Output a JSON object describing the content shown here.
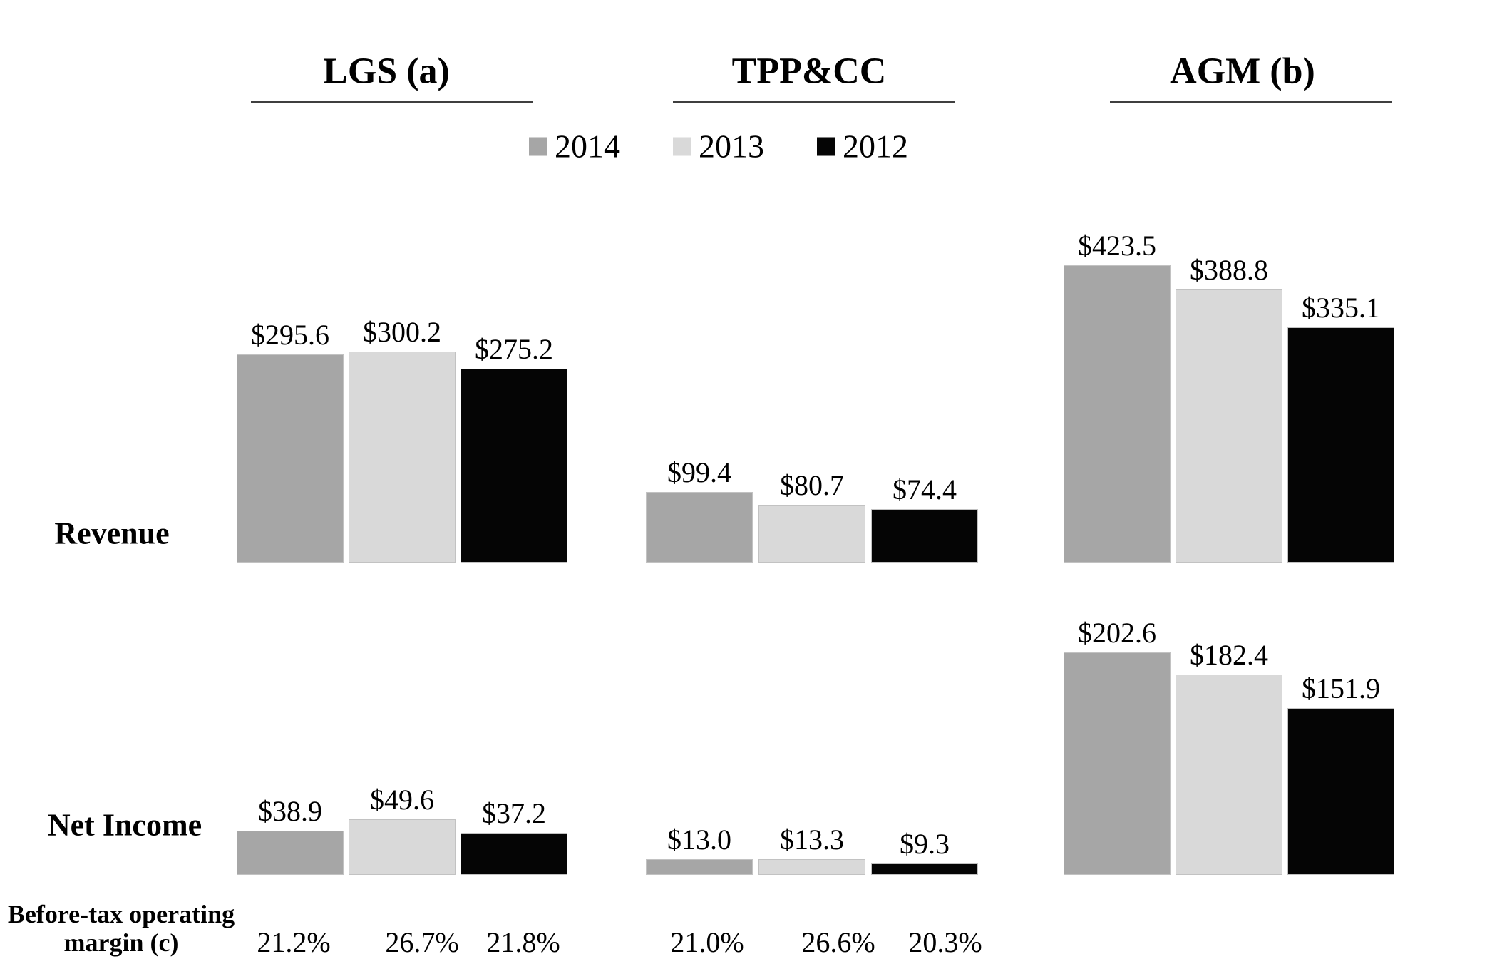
{
  "legend": {
    "items": [
      {
        "label": "2014",
        "color": "#a6a6a6"
      },
      {
        "label": "2013",
        "color": "#d9d9d9"
      },
      {
        "label": "2012",
        "color": "#050505"
      }
    ]
  },
  "row_labels": {
    "revenue": "Revenue",
    "net_income": "Net Income"
  },
  "margin_row_label": {
    "line1": "Before-tax operating",
    "line2": "margin (c)"
  },
  "chart_data": {
    "type": "bar",
    "title": "",
    "grid": false,
    "legend_position": "top-center",
    "years": [
      "2014",
      "2013",
      "2012"
    ],
    "series_colors": [
      "#a6a6a6",
      "#d9d9d9",
      "#050505"
    ],
    "rows": [
      "Revenue",
      "Net Income"
    ],
    "groups": [
      {
        "name": "LGS (a)",
        "revenue": [
          295.6,
          300.2,
          275.2
        ],
        "revenue_labels": [
          "$295.6",
          "$300.2",
          "$275.2"
        ],
        "net_income": [
          38.9,
          49.6,
          37.2
        ],
        "net_income_labels": [
          "$38.9",
          "$49.6",
          "$37.2"
        ],
        "margins": [
          "21.2%",
          "26.7%",
          "21.8%"
        ]
      },
      {
        "name": "TPP&CC",
        "revenue": [
          99.4,
          80.7,
          74.4
        ],
        "revenue_labels": [
          "$99.4",
          "$80.7",
          "$74.4"
        ],
        "net_income": [
          13.0,
          13.3,
          9.3
        ],
        "net_income_labels": [
          "$13.0",
          "$13.3",
          "$9.3"
        ],
        "margins": [
          "21.0%",
          "26.6%",
          "20.3%"
        ]
      },
      {
        "name": "AGM (b)",
        "revenue": [
          423.5,
          388.8,
          335.1
        ],
        "revenue_labels": [
          "$423.5",
          "$388.8",
          "$335.1"
        ],
        "net_income": [
          202.6,
          182.4,
          151.9
        ],
        "net_income_labels": [
          "$202.6",
          "$182.4",
          "$151.9"
        ],
        "margins": []
      }
    ]
  }
}
